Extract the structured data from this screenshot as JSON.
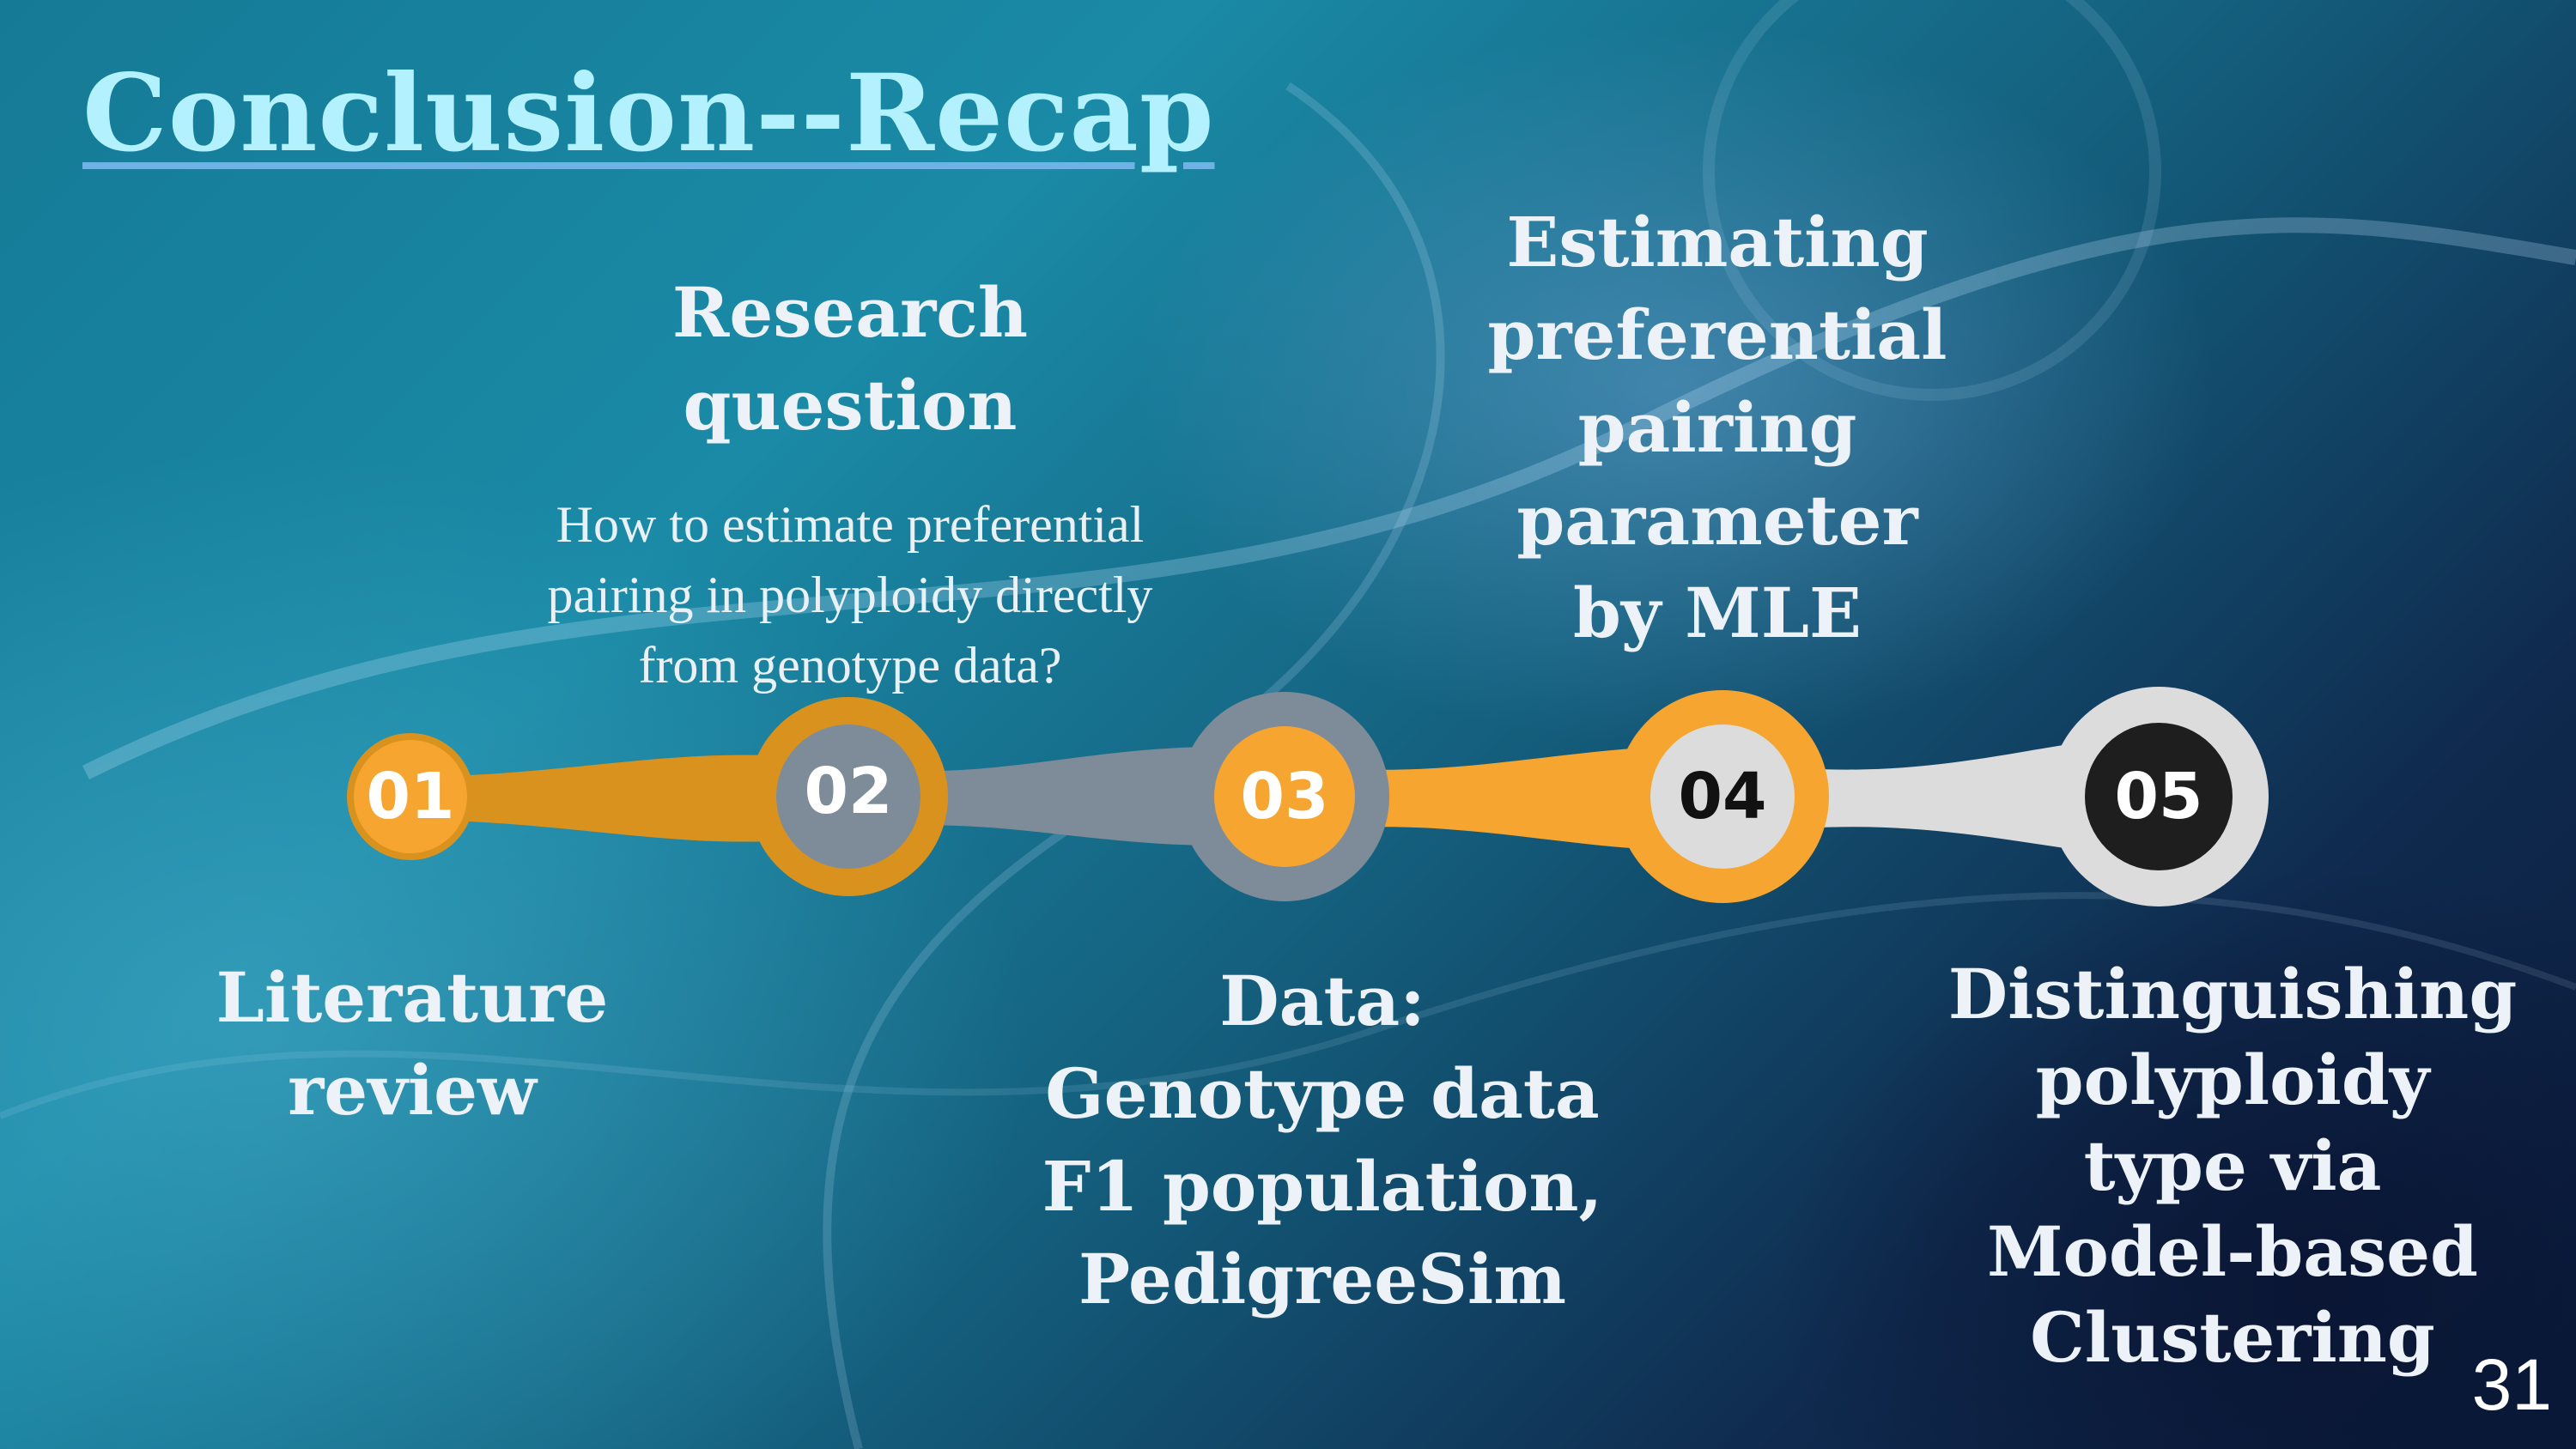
{
  "slide": {
    "title": "Conclusion--Recap",
    "page_number": "31"
  },
  "steps": [
    {
      "number": "01",
      "label": "Literature\nreview",
      "detail": ""
    },
    {
      "number": "02",
      "label": "Research\nquestion",
      "detail": "How to estimate preferential\npairing in polyploidy directly\nfrom genotype data?"
    },
    {
      "number": "03",
      "label": "Data:\nGenotype data\nF1 population,\nPedigreeSim",
      "detail": ""
    },
    {
      "number": "04",
      "label": "Estimating\npreferential\npairing\nparameter\nby MLE",
      "detail": ""
    },
    {
      "number": "05",
      "label": "Distinguishing\npolyploidy\ntype via\nModel-based\nClustering",
      "detail": ""
    }
  ],
  "colors": {
    "orange": "#f7a531",
    "orange_dark": "#d9921e",
    "gray": "#7d8c98",
    "light_gray": "#dcdcdc",
    "black": "#1e1e1e",
    "title": "#b4f1ff"
  }
}
